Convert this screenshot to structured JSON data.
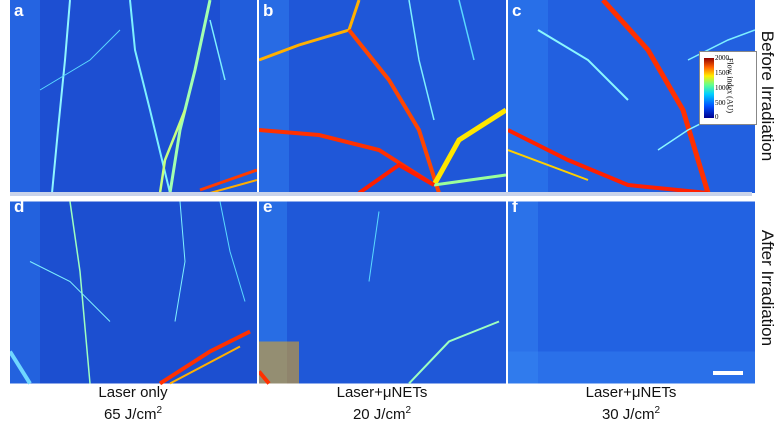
{
  "panels": [
    {
      "label": "a"
    },
    {
      "label": "b"
    },
    {
      "label": "c"
    },
    {
      "label": "d"
    },
    {
      "label": "e"
    },
    {
      "label": "f"
    }
  ],
  "row_labels": {
    "top": "Before Irradiation",
    "bottom": "After Irradiation"
  },
  "columns": [
    {
      "line1": "Laser only",
      "fluence": "65 J/cm",
      "exp": "2"
    },
    {
      "line1": "Laser+μNETs",
      "fluence": "20 J/cm",
      "exp": "2"
    },
    {
      "line1": "Laser+μNETs",
      "fluence": "30 J/cm",
      "exp": "2"
    }
  ],
  "colorbar": {
    "title": "Flow index (AU)",
    "ticks": [
      "2000",
      "1500",
      "1000",
      "500",
      "0"
    ],
    "colors": [
      "#00008f",
      "#0050ff",
      "#00d0ff",
      "#60ff90",
      "#ffee00",
      "#ff6000",
      "#8f0000"
    ]
  },
  "colors": {
    "background_tissue": "#1b4fd0",
    "vessel_mid": "#6fffd0",
    "vessel_high": "#ff2a00"
  }
}
